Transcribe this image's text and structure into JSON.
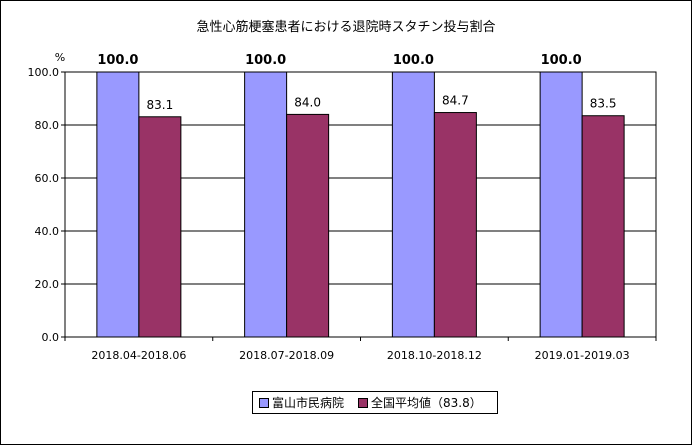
{
  "chart_data": {
    "type": "bar",
    "title": "急性心筋梗塞患者における退院時スタチン投与割合",
    "y_unit": "%",
    "categories": [
      "2018.04-2018.06",
      "2018.07-2018.09",
      "2018.10-2018.12",
      "2019.01-2019.03"
    ],
    "ylim": [
      0,
      100
    ],
    "y_ticks": [
      "0.0",
      "20.0",
      "40.0",
      "60.0",
      "80.0",
      "100.0"
    ],
    "grid": true,
    "legend_position": "bottom",
    "series": [
      {
        "name": "富山市民病院",
        "color": "#9999ff",
        "values": [
          100.0,
          100.0,
          100.0,
          100.0
        ],
        "labels": [
          "100.0",
          "100.0",
          "100.0",
          "100.0"
        ]
      },
      {
        "name": "全国平均値（83.8）",
        "color": "#993366",
        "values": [
          83.1,
          84.0,
          84.7,
          83.5
        ],
        "labels": [
          "83.1",
          "84.0",
          "84.7",
          "83.5"
        ]
      }
    ]
  }
}
